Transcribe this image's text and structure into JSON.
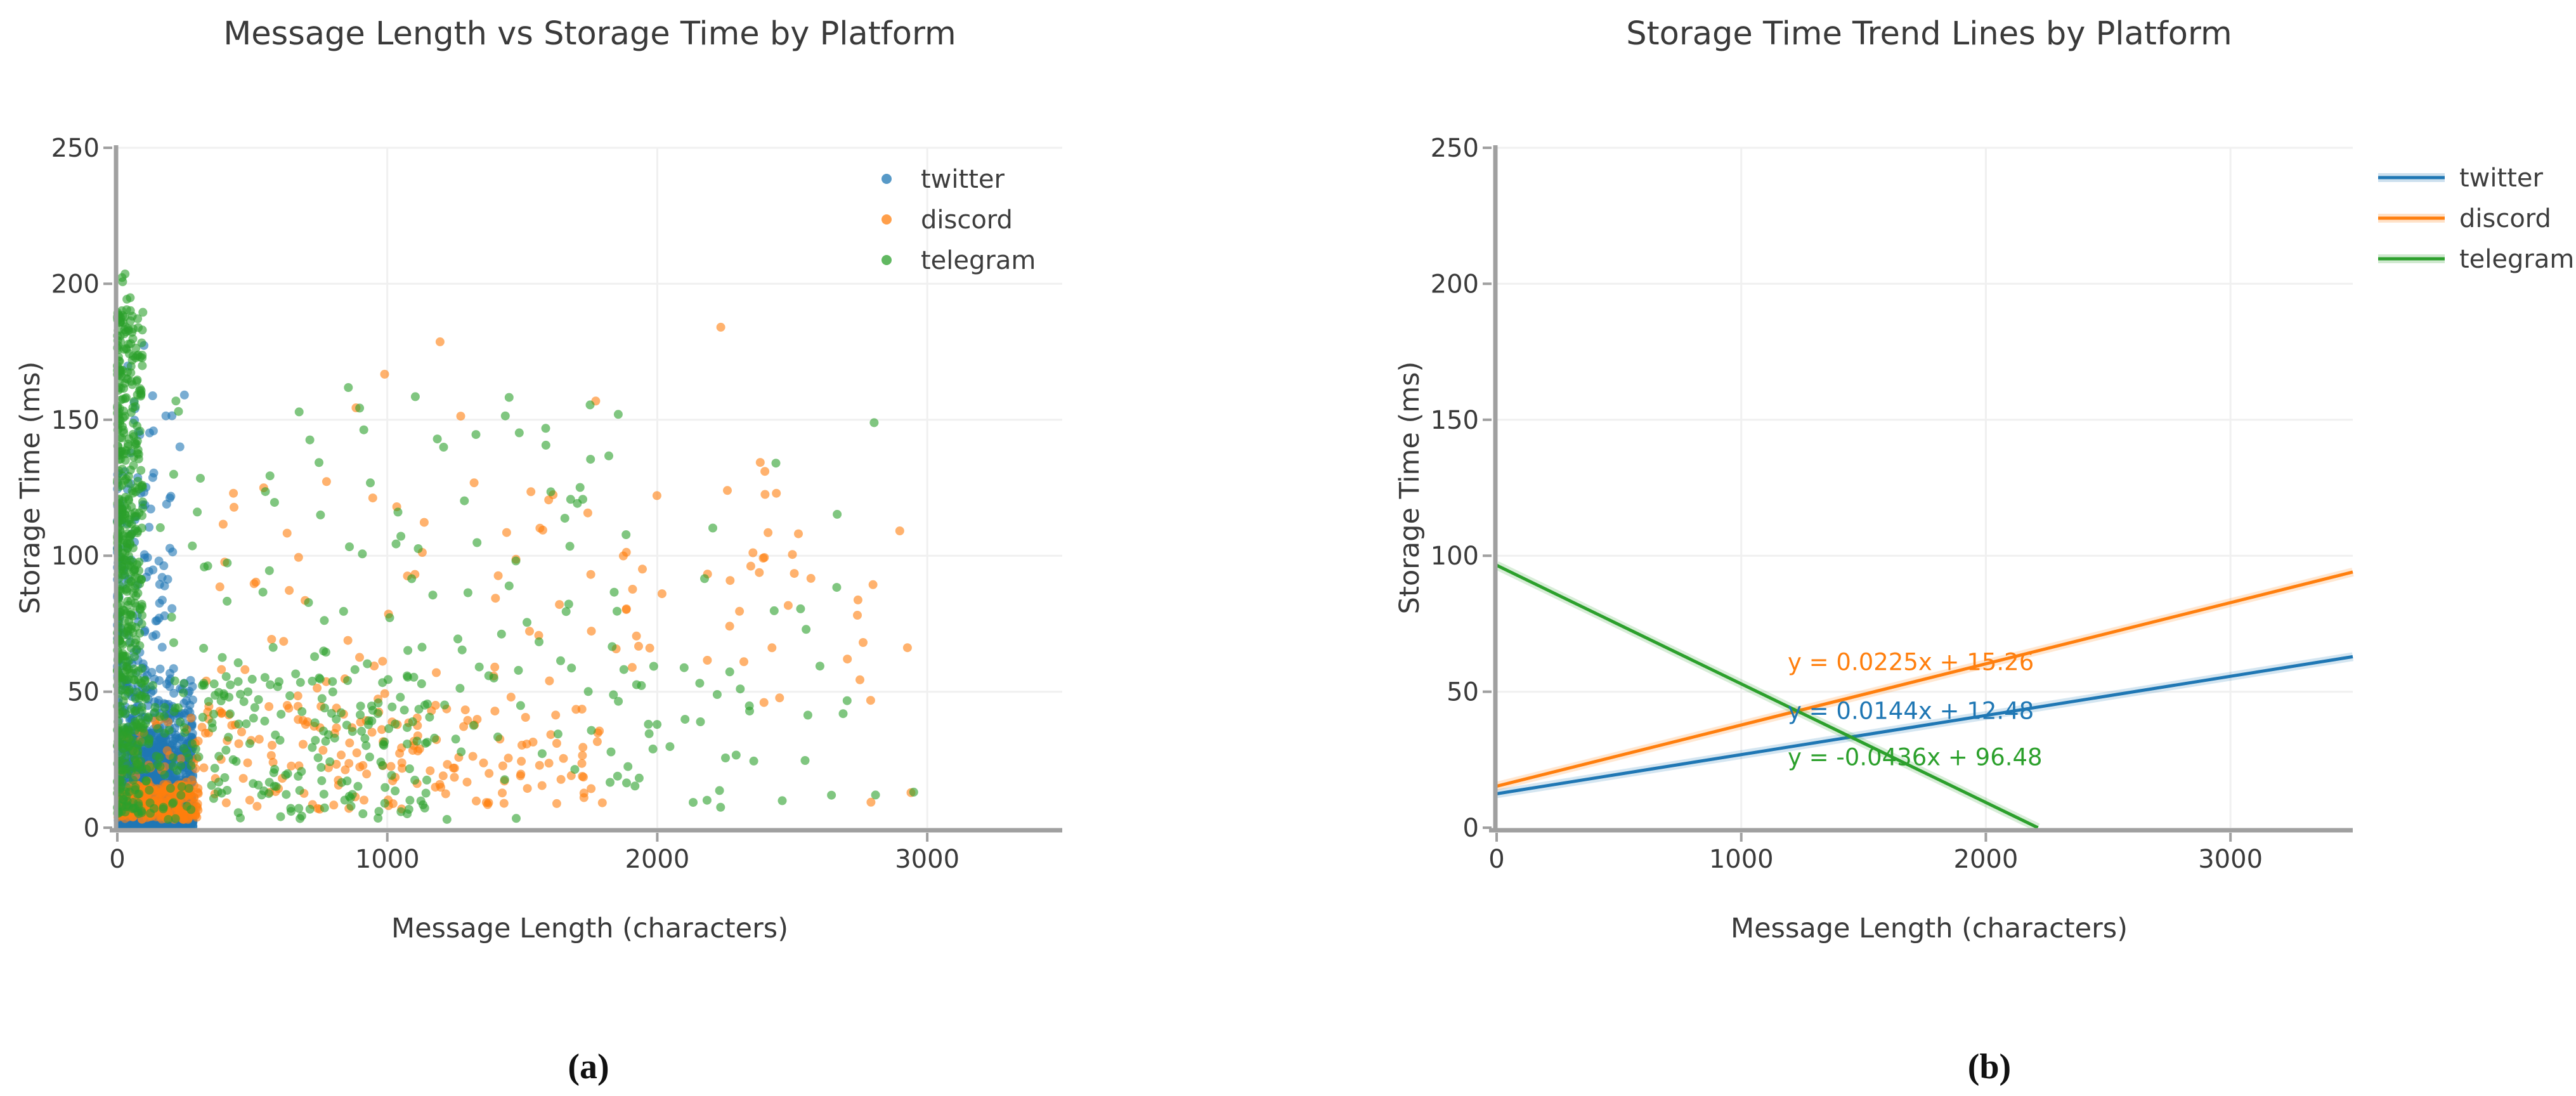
{
  "figure": {
    "caption_a": "(a)",
    "caption_b": "(b)"
  },
  "colors": {
    "twitter": "#1f77b4",
    "discord": "#ff7f0e",
    "telegram": "#2ca02c",
    "axis": "#a0a0a0",
    "grid": "#f0f0f0",
    "text": "#3a3a3a"
  },
  "chart_data": [
    {
      "type": "scatter",
      "title": "Message Length vs Storage Time by Platform",
      "xlabel": "Message Length (characters)",
      "ylabel": "Storage Time (ms)",
      "xlim": [
        0,
        3500
      ],
      "ylim": [
        0,
        250
      ],
      "xticks": [
        0,
        1000,
        2000,
        3000
      ],
      "yticks": [
        0,
        50,
        100,
        150,
        200,
        250
      ],
      "grid": true,
      "legend_position": "upper-right-inside",
      "point_radius": 7,
      "point_opacity": 0.6,
      "seed": 42,
      "series": [
        {
          "name": "twitter",
          "color": "#1f77b4",
          "summary": "dense block x 0-280 chars, y 0-35 ms; sparser column near x=0 up to ~130 ms; few outliers to ~178 ms",
          "clusters": [
            {
              "n": 620,
              "x": [
                2,
                282
              ],
              "y": [
                1,
                33
              ]
            },
            {
              "n": 240,
              "x": [
                2,
                282
              ],
              "y": [
                0,
                3
              ]
            },
            {
              "n": 150,
              "x": [
                2,
                282
              ],
              "y": [
                33,
                55
              ],
              "ypow": 1.5
            },
            {
              "n": 120,
              "x": [
                0,
                210
              ],
              "y": [
                55,
                132
              ],
              "xpow": 2.0,
              "ypow": 1.3
            },
            {
              "n": 15,
              "x": [
                10,
                300
              ],
              "y": [
                132,
                178
              ]
            }
          ]
        },
        {
          "name": "discord",
          "color": "#ff7f0e",
          "summary": "dense low stripe x 0-300, y 3-16 ms; scattered 300-3000 chars mostly 6-135 ms; few high outliers to ~186 ms",
          "clusters": [
            {
              "n": 270,
              "x": [
                2,
                300
              ],
              "y": [
                3,
                16
              ]
            },
            {
              "n": 30,
              "x": [
                2,
                300
              ],
              "y": [
                16,
                42
              ],
              "ypow": 1.4
            },
            {
              "n": 170,
              "x": [
                300,
                1800
              ],
              "y": [
                6,
                46
              ]
            },
            {
              "n": 85,
              "x": [
                300,
                2600
              ],
              "y": [
                46,
                135
              ],
              "ypow": 1.25
            },
            {
              "n": 12,
              "x": [
                1800,
                3000
              ],
              "y": [
                55,
                130
              ]
            },
            {
              "n": 6,
              "x": [
                700,
                2400
              ],
              "y": [
                140,
                186
              ]
            },
            {
              "n": 8,
              "x": [
                2700,
                3010
              ],
              "y": [
                5,
                95
              ]
            }
          ]
        },
        {
          "name": "telegram",
          "color": "#2ca02c",
          "summary": "very dense column x 0-95 spanning 5-206 ms; broad low band 3-55 ms out to ~2350; sparse points to ~3060 chars",
          "clusters": [
            {
              "n": 420,
              "x": [
                0,
                95
              ],
              "y": [
                40,
                190
              ],
              "xpow": 1.7
            },
            {
              "n": 8,
              "x": [
                0,
                70
              ],
              "y": [
                188,
                206
              ]
            },
            {
              "n": 110,
              "x": [
                0,
                95
              ],
              "y": [
                5,
                40
              ],
              "xpow": 1.5
            },
            {
              "n": 230,
              "x": [
                95,
                1150
              ],
              "y": [
                3,
                55
              ],
              "xpow": 1.25
            },
            {
              "n": 95,
              "x": [
                150,
                1900
              ],
              "y": [
                55,
                168
              ],
              "xpow": 1.15,
              "ypow": 1.35
            },
            {
              "n": 48,
              "x": [
                1150,
                2350
              ],
              "y": [
                3,
                60
              ]
            },
            {
              "n": 24,
              "x": [
                1900,
                3060
              ],
              "y": [
                5,
                162
              ]
            }
          ]
        }
      ]
    },
    {
      "type": "line",
      "title": "Storage Time Trend Lines by Platform",
      "xlabel": "Message Length (characters)",
      "ylabel": "Storage Time (ms)",
      "xlim": [
        0,
        3500
      ],
      "ylim": [
        0,
        250
      ],
      "xticks": [
        0,
        1000,
        2000,
        3000
      ],
      "yticks": [
        0,
        50,
        100,
        150,
        200,
        250
      ],
      "grid": true,
      "legend_position": "outside-right",
      "series": [
        {
          "name": "twitter",
          "color": "#1f77b4",
          "slope": 0.0144,
          "intercept": 12.48,
          "label": "y = 0.0144x + 12.48",
          "label_x": 1190,
          "label_y": 43
        },
        {
          "name": "discord",
          "color": "#ff7f0e",
          "slope": 0.0225,
          "intercept": 15.26,
          "label": "y = 0.0225x + 15.26",
          "label_x": 1190,
          "label_y": 61
        },
        {
          "name": "telegram",
          "color": "#2ca02c",
          "slope": -0.0436,
          "intercept": 96.48,
          "label": "y = -0.0436x + 96.48",
          "label_x": 1190,
          "label_y": 26
        }
      ]
    }
  ]
}
